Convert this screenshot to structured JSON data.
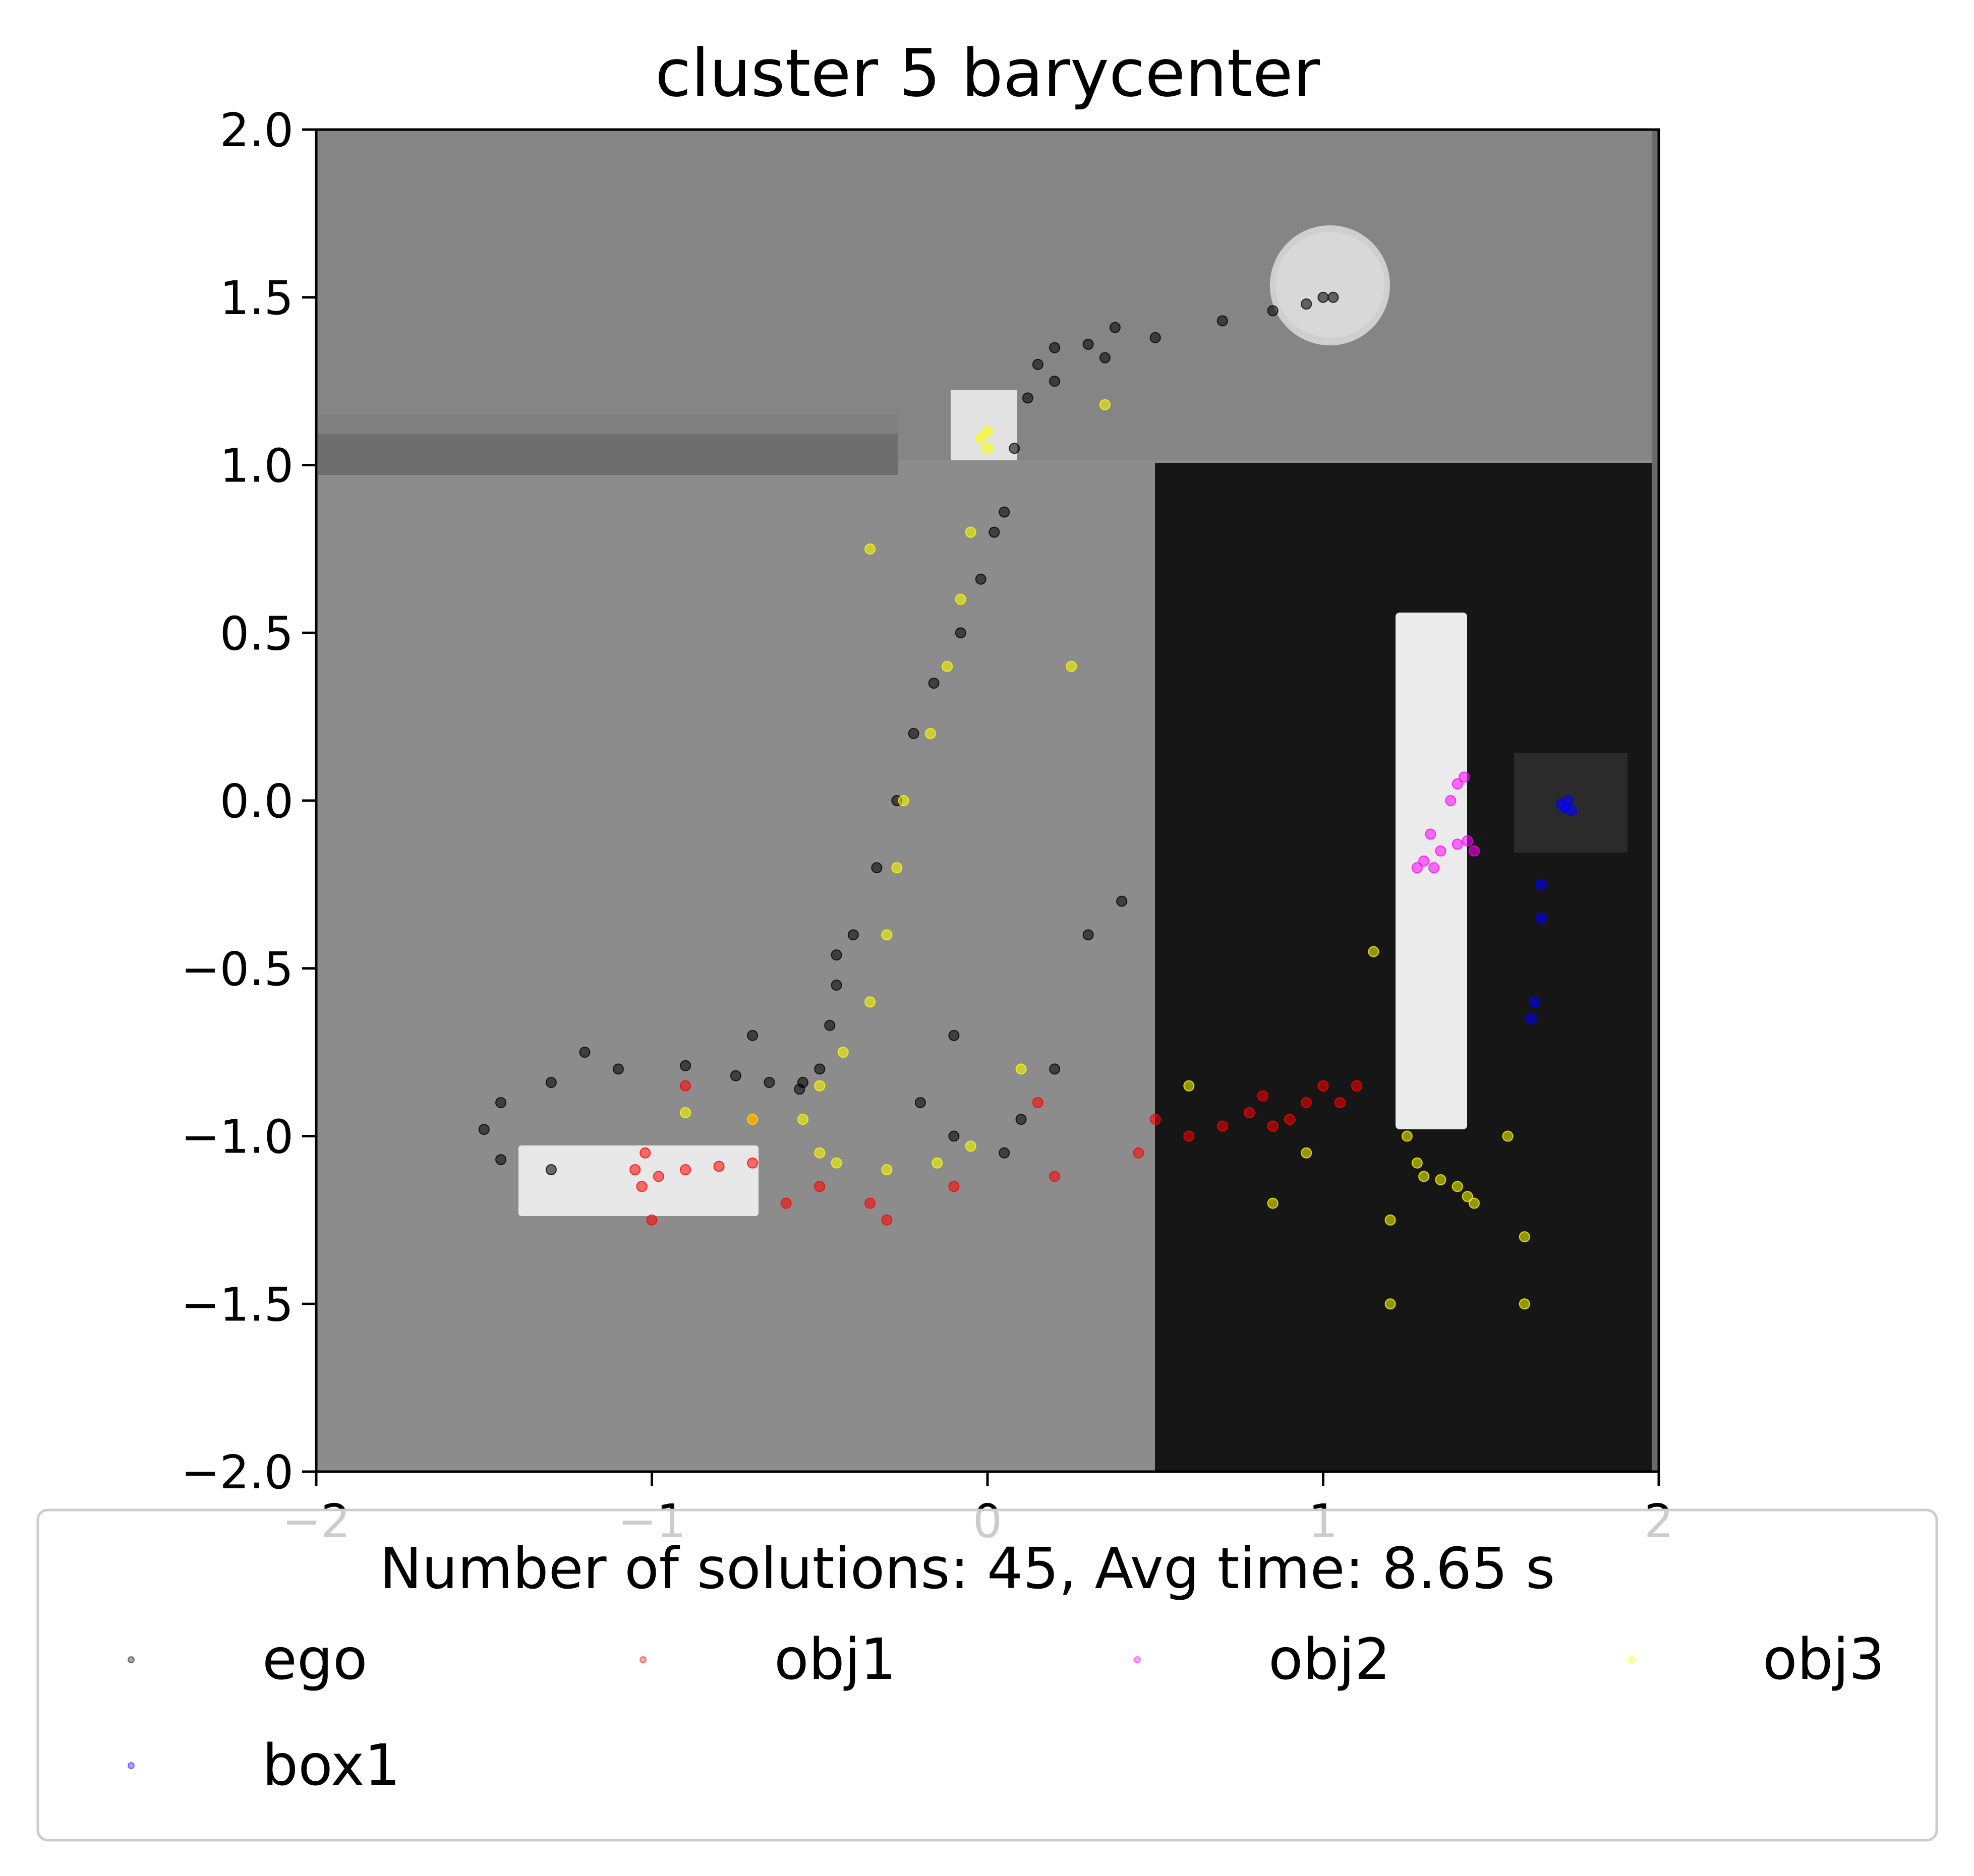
{
  "chart_data": {
    "type": "scatter",
    "title": "cluster 5 barycenter",
    "xlim": [
      -2,
      2
    ],
    "ylim": [
      -2,
      2
    ],
    "xticks": [
      -2,
      -1,
      0,
      1,
      2
    ],
    "xtick_labels": [
      "−2",
      "−1",
      "0",
      "1",
      "2"
    ],
    "yticks": [
      2.0,
      1.5,
      1.0,
      0.5,
      0.0,
      -0.5,
      -1.0,
      -1.5,
      -2.0
    ],
    "ytick_labels": [
      "2.0",
      "1.5",
      "1.0",
      "0.5",
      "0.0",
      "−0.5",
      "−1.0",
      "−1.5",
      "−2.0"
    ],
    "background": "top-down scene render: grey floor, dark region at right, white boxes and a round table",
    "legend": {
      "title": "Number of solutions: 45, Avg time: 8.65 s",
      "placement": "below plot",
      "columns": 4
    },
    "series": [
      {
        "name": "ego",
        "color": "#000000",
        "points": [
          [
            -1.3,
            -1.1
          ],
          [
            -1.45,
            -1.07
          ],
          [
            -1.5,
            -0.98
          ],
          [
            -1.45,
            -0.9
          ],
          [
            -1.3,
            -0.84
          ],
          [
            -1.1,
            -0.8
          ],
          [
            -0.9,
            -0.79
          ],
          [
            -0.75,
            -0.82
          ],
          [
            -0.65,
            -0.84
          ],
          [
            -0.56,
            -0.86
          ],
          [
            -0.5,
            -0.8
          ],
          [
            -0.47,
            -0.67
          ],
          [
            -0.45,
            -0.55
          ],
          [
            -0.4,
            -0.4
          ],
          [
            -0.33,
            -0.2
          ],
          [
            -0.27,
            0.0
          ],
          [
            -0.22,
            0.2
          ],
          [
            -0.16,
            0.35
          ],
          [
            -0.08,
            0.5
          ],
          [
            -0.02,
            0.66
          ],
          [
            0.02,
            0.8
          ],
          [
            0.05,
            0.86
          ],
          [
            0.08,
            1.05
          ],
          [
            0.12,
            1.2
          ],
          [
            0.15,
            1.3
          ],
          [
            0.2,
            1.35
          ],
          [
            0.3,
            1.36
          ],
          [
            0.35,
            1.32
          ],
          [
            0.5,
            1.38
          ],
          [
            0.7,
            1.43
          ],
          [
            0.85,
            1.46
          ],
          [
            0.95,
            1.48
          ],
          [
            1.0,
            1.5
          ],
          [
            1.03,
            1.5
          ],
          [
            0.2,
            1.25
          ],
          [
            0.38,
            1.41
          ],
          [
            -0.45,
            -0.46
          ],
          [
            -0.55,
            -0.84
          ],
          [
            -0.2,
            -0.9
          ],
          [
            -0.1,
            -1.0
          ],
          [
            0.05,
            -1.05
          ],
          [
            0.1,
            -0.95
          ],
          [
            0.3,
            -0.4
          ],
          [
            0.4,
            -0.3
          ],
          [
            -0.1,
            -0.7
          ],
          [
            0.2,
            -0.8
          ],
          [
            -1.2,
            -0.75
          ],
          [
            -0.7,
            -0.7
          ]
        ]
      },
      {
        "name": "obj1",
        "color": "#ff0000",
        "points": [
          [
            -1.05,
            -1.1
          ],
          [
            -1.02,
            -1.05
          ],
          [
            -0.98,
            -1.12
          ],
          [
            -1.03,
            -1.15
          ],
          [
            -0.9,
            -1.1
          ],
          [
            -0.8,
            -1.09
          ],
          [
            -0.7,
            -1.08
          ],
          [
            -0.5,
            -1.15
          ],
          [
            -0.35,
            -1.2
          ],
          [
            -0.1,
            -1.15
          ],
          [
            0.2,
            -1.12
          ],
          [
            0.45,
            -1.05
          ],
          [
            0.6,
            -1.0
          ],
          [
            0.7,
            -0.97
          ],
          [
            0.78,
            -0.93
          ],
          [
            0.82,
            -0.88
          ],
          [
            0.85,
            -0.97
          ],
          [
            0.9,
            -0.95
          ],
          [
            0.95,
            -0.9
          ],
          [
            1.0,
            -0.85
          ],
          [
            1.05,
            -0.9
          ],
          [
            -1.0,
            -1.25
          ],
          [
            -0.6,
            -1.2
          ],
          [
            -0.3,
            -1.25
          ],
          [
            0.15,
            -0.9
          ],
          [
            0.5,
            -0.95
          ],
          [
            1.1,
            -0.85
          ],
          [
            -0.9,
            -0.85
          ],
          [
            -0.7,
            -0.95
          ]
        ]
      },
      {
        "name": "obj2",
        "color": "#ff00ff",
        "points": [
          [
            1.28,
            -0.2
          ],
          [
            1.3,
            -0.18
          ],
          [
            1.35,
            -0.15
          ],
          [
            1.4,
            -0.13
          ],
          [
            1.43,
            -0.12
          ],
          [
            1.45,
            -0.15
          ],
          [
            1.33,
            -0.2
          ],
          [
            1.38,
            0.0
          ],
          [
            1.4,
            0.05
          ],
          [
            1.42,
            0.07
          ],
          [
            1.32,
            -0.1
          ]
        ]
      },
      {
        "name": "obj3",
        "color": "#ffff00",
        "points": [
          [
            0.0,
            1.1
          ],
          [
            -0.02,
            1.08
          ],
          [
            0.0,
            1.05
          ],
          [
            -0.05,
            0.8
          ],
          [
            -0.08,
            0.6
          ],
          [
            -0.12,
            0.4
          ],
          [
            -0.17,
            0.2
          ],
          [
            -0.25,
            0.0
          ],
          [
            -0.27,
            -0.2
          ],
          [
            -0.3,
            -0.4
          ],
          [
            -0.35,
            -0.6
          ],
          [
            -0.43,
            -0.75
          ],
          [
            -0.5,
            -0.85
          ],
          [
            -0.55,
            -0.95
          ],
          [
            -0.5,
            -1.05
          ],
          [
            -0.45,
            -1.08
          ],
          [
            -0.3,
            -1.1
          ],
          [
            -0.15,
            -1.08
          ],
          [
            -0.05,
            -1.03
          ],
          [
            1.25,
            -1.0
          ],
          [
            1.28,
            -1.08
          ],
          [
            1.3,
            -1.12
          ],
          [
            1.35,
            -1.13
          ],
          [
            1.4,
            -1.15
          ],
          [
            1.43,
            -1.18
          ],
          [
            1.45,
            -1.2
          ],
          [
            0.35,
            1.18
          ],
          [
            -0.35,
            0.75
          ],
          [
            0.25,
            0.4
          ],
          [
            0.1,
            -0.8
          ],
          [
            0.6,
            -0.85
          ],
          [
            0.85,
            -1.2
          ],
          [
            1.55,
            -1.0
          ],
          [
            1.6,
            -1.3
          ],
          [
            1.2,
            -1.25
          ],
          [
            0.95,
            -1.05
          ],
          [
            1.15,
            -0.45
          ],
          [
            1.2,
            -1.5
          ],
          [
            1.6,
            -1.5
          ],
          [
            -0.9,
            -0.93
          ],
          [
            -0.7,
            -0.95
          ]
        ]
      },
      {
        "name": "box1",
        "color": "#0000ff",
        "points": [
          [
            1.72,
            -0.02
          ],
          [
            1.73,
            0.0
          ],
          [
            1.74,
            -0.03
          ],
          [
            1.71,
            -0.01
          ],
          [
            1.65,
            -0.25
          ],
          [
            1.65,
            -0.35
          ],
          [
            1.63,
            -0.6
          ],
          [
            1.62,
            -0.65
          ]
        ]
      }
    ]
  }
}
